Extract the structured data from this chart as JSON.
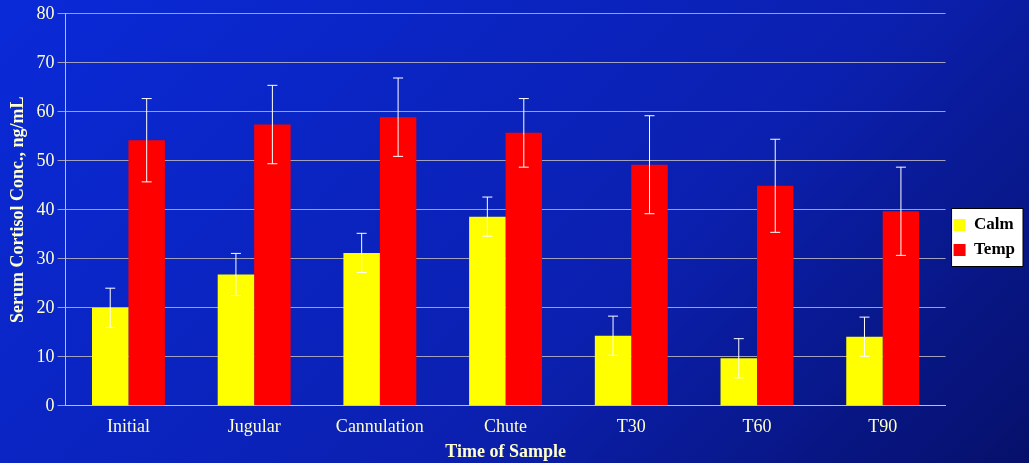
{
  "chart_data": {
    "type": "bar",
    "xlabel": "Time of Sample",
    "ylabel": "Serum Cortisol Conc., ng/mL",
    "categories": [
      "Initial",
      "Jugular",
      "Cannulation",
      "Chute",
      "T30",
      "T60",
      "T90"
    ],
    "series": [
      {
        "name": "Calm",
        "color": "#ffff00",
        "values": [
          20.0,
          26.8,
          31.2,
          38.6,
          14.3,
          9.7,
          14.1
        ],
        "errors": [
          4,
          4.3,
          4,
          4,
          4,
          4,
          4
        ]
      },
      {
        "name": "Temp",
        "color": "#ff0000",
        "values": [
          54.2,
          57.4,
          58.9,
          55.7,
          49.2,
          44.9,
          39.7
        ],
        "errors": [
          8.5,
          8,
          8,
          7,
          10,
          9.5,
          9
        ]
      }
    ],
    "ylim": [
      0,
      80
    ],
    "yticks": [
      0,
      10,
      20,
      30,
      40,
      50,
      60,
      70,
      80
    ],
    "grid": "y",
    "legend": "right"
  }
}
